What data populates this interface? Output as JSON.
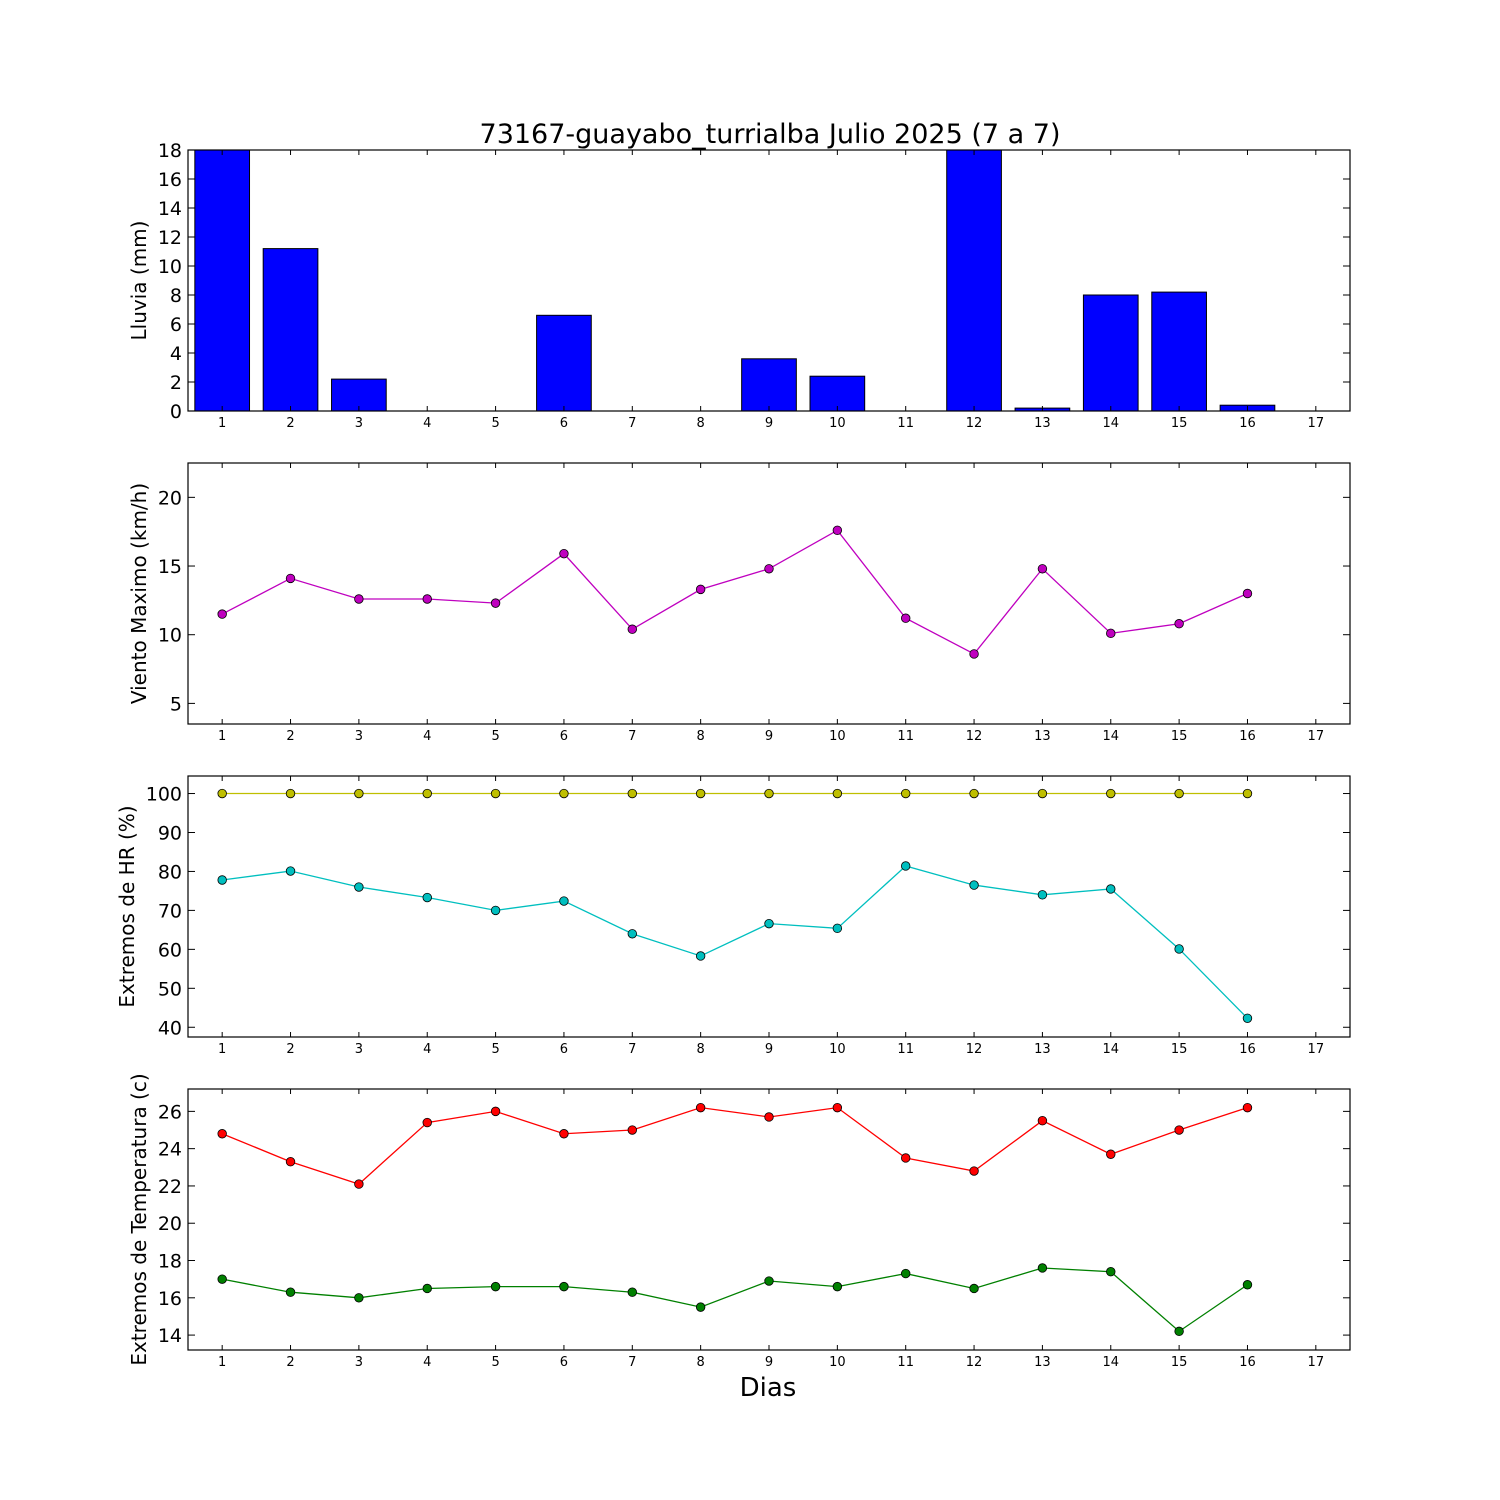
{
  "title": "73167-guayabo_turrialba Julio 2025  (7 a 7)",
  "xlabel": "Dias",
  "colors": {
    "rain": "#0000ff",
    "wind": "#bf00bf",
    "hr_max": "#bfbf00",
    "hr_min": "#00bfbf",
    "temp_max": "#ff0000",
    "temp_min": "#008000"
  },
  "chart_data": [
    {
      "type": "bar",
      "ylabel": "Lluvia (mm)",
      "xlim": [
        0.5,
        17.5
      ],
      "ylim": [
        0,
        18
      ],
      "xticks": [
        1,
        2,
        3,
        4,
        5,
        6,
        7,
        8,
        9,
        10,
        11,
        12,
        13,
        14,
        15,
        16,
        17
      ],
      "yticks": [
        0,
        2,
        4,
        6,
        8,
        10,
        12,
        14,
        16,
        18
      ],
      "categories": [
        1,
        2,
        3,
        4,
        5,
        6,
        7,
        8,
        9,
        10,
        11,
        12,
        13,
        14,
        15,
        16
      ],
      "values": [
        18.0,
        11.2,
        2.2,
        0,
        0,
        6.6,
        0,
        0,
        3.6,
        2.4,
        0,
        18.0,
        0.2,
        8.0,
        8.2,
        0.4
      ],
      "grid": false
    },
    {
      "type": "line",
      "ylabel": "Viento Maximo (km/h)",
      "xlim": [
        0.5,
        17.5
      ],
      "ylim": [
        3.5,
        22.5
      ],
      "xticks": [
        1,
        2,
        3,
        4,
        5,
        6,
        7,
        8,
        9,
        10,
        11,
        12,
        13,
        14,
        15,
        16,
        17
      ],
      "yticks": [
        5,
        10,
        15,
        20
      ],
      "series": [
        {
          "x": [
            1,
            2,
            3,
            4,
            5,
            6,
            7,
            8,
            9,
            10,
            11,
            12,
            13,
            14,
            15,
            16
          ],
          "values": [
            11.5,
            14.1,
            12.6,
            12.6,
            12.3,
            15.9,
            10.4,
            13.3,
            14.8,
            17.6,
            11.2,
            8.6,
            14.8,
            10.1,
            10.8,
            13.0
          ]
        }
      ],
      "grid": false
    },
    {
      "type": "line",
      "ylabel": "Extremos de HR (%)",
      "xlim": [
        0.5,
        17.5
      ],
      "ylim": [
        37.5,
        104.5
      ],
      "xticks": [
        1,
        2,
        3,
        4,
        5,
        6,
        7,
        8,
        9,
        10,
        11,
        12,
        13,
        14,
        15,
        16,
        17
      ],
      "yticks": [
        40,
        50,
        60,
        70,
        80,
        90,
        100
      ],
      "series": [
        {
          "x": [
            1,
            2,
            3,
            4,
            5,
            6,
            7,
            8,
            9,
            10,
            11,
            12,
            13,
            14,
            15,
            16
          ],
          "values": [
            100,
            100,
            100,
            100,
            100,
            100,
            100,
            100,
            100,
            100,
            100,
            100,
            100,
            100,
            100,
            100
          ]
        },
        {
          "x": [
            1,
            2,
            3,
            4,
            5,
            6,
            7,
            8,
            9,
            10,
            11,
            12,
            13,
            14,
            15,
            16
          ],
          "values": [
            77.8,
            80.1,
            76.0,
            73.3,
            70.0,
            72.4,
            64.0,
            58.3,
            66.6,
            65.4,
            81.4,
            76.5,
            74.0,
            75.5,
            60.1,
            42.3
          ]
        }
      ],
      "grid": false
    },
    {
      "type": "line",
      "ylabel": "Extremos de Temperatura (c)",
      "xlim": [
        0.5,
        17.5
      ],
      "ylim": [
        13.2,
        27.2
      ],
      "xticks": [
        1,
        2,
        3,
        4,
        5,
        6,
        7,
        8,
        9,
        10,
        11,
        12,
        13,
        14,
        15,
        16,
        17
      ],
      "yticks": [
        14,
        16,
        18,
        20,
        22,
        24,
        26
      ],
      "series": [
        {
          "x": [
            1,
            2,
            3,
            4,
            5,
            6,
            7,
            8,
            9,
            10,
            11,
            12,
            13,
            14,
            15,
            16
          ],
          "values": [
            24.8,
            23.3,
            22.1,
            25.4,
            26.0,
            24.8,
            25.0,
            26.2,
            25.7,
            26.2,
            23.5,
            22.8,
            25.5,
            23.7,
            25.0,
            26.2
          ]
        },
        {
          "x": [
            1,
            2,
            3,
            4,
            5,
            6,
            7,
            8,
            9,
            10,
            11,
            12,
            13,
            14,
            15,
            16
          ],
          "values": [
            17.0,
            16.3,
            16.0,
            16.5,
            16.6,
            16.6,
            16.3,
            15.5,
            16.9,
            16.6,
            17.3,
            16.5,
            17.6,
            17.4,
            14.2,
            16.7
          ]
        }
      ],
      "grid": false
    }
  ]
}
